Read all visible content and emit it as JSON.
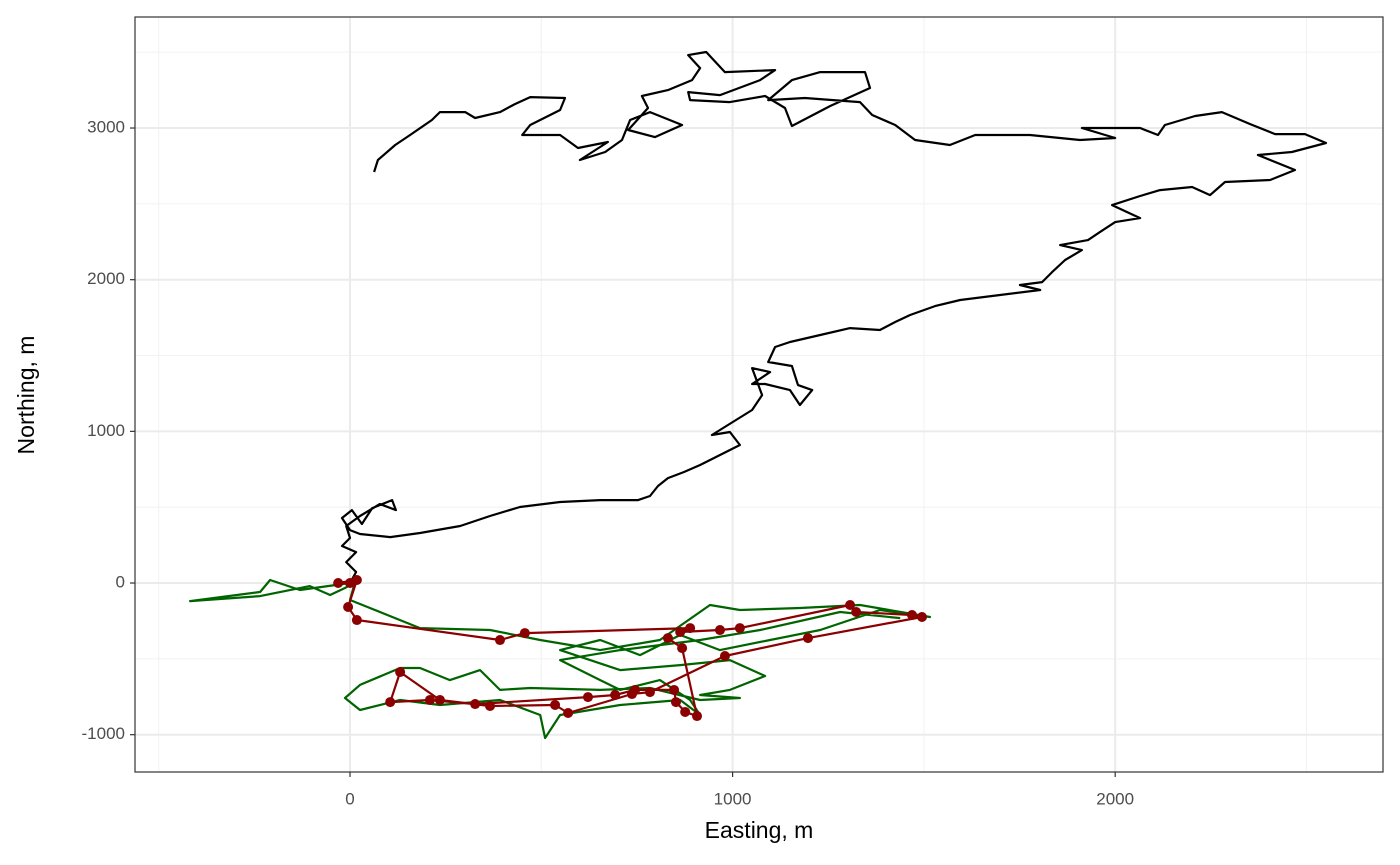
{
  "chart_data": {
    "type": "line",
    "x_label": "Easting, m",
    "y_label": "Northing, m",
    "xlim": [
      -562,
      2700
    ],
    "ylim": [
      -1246,
      3732
    ],
    "xticks": [
      0,
      1000,
      2000
    ],
    "yticks": [
      -1000,
      0,
      1000,
      2000,
      3000
    ],
    "x_minor_grid": [
      -500,
      500,
      1500,
      2500
    ],
    "y_minor_grid": [
      -500,
      500,
      1500,
      2500,
      3500
    ],
    "grid": true,
    "series": [
      {
        "color": "#000000",
        "markers": false,
        "x": [
          63,
          73,
          118,
          157,
          214,
          235,
          301,
          327,
          392,
          431,
          471,
          562,
          549,
          471,
          450,
          549,
          596,
          674,
          601,
          667,
          711,
          732,
          784,
          868,
          797,
          727,
          779,
          763,
          831,
          894,
          915,
          884,
          931,
          980,
          1111,
          1072,
          967,
          884,
          889,
          993,
          1085,
          1137,
          1155,
          1255,
          1359,
          1346,
          1229,
          1155,
          1093,
          1189,
          1333,
          1365,
          1425,
          1477,
          1568,
          1634,
          1777,
          1908,
          2000,
          1913,
          2065,
          2112,
          2130,
          2209,
          2279,
          2353,
          2418,
          2496,
          2551,
          2462,
          2373,
          2470,
          2405,
          2287,
          2248,
          2201,
          2117,
          2065,
          1992,
          2065,
          2000,
          1960,
          1929,
          1856,
          1913,
          1869,
          1835,
          1809,
          1751,
          1804,
          1699,
          1595,
          1529,
          1464,
          1425,
          1385,
          1307,
          1229,
          1150,
          1111,
          1093,
          1155,
          1171,
          1208,
          1176,
          1150,
          1085,
          1051,
          1098,
          1051,
          1077,
          1051,
          1009,
          946,
          993,
          1019,
          967,
          915,
          873,
          831,
          805,
          784,
          753,
          654,
          549,
          444,
          366,
          288,
          183,
          105,
          26,
          0,
          -21,
          5,
          31,
          58,
          110,
          120,
          78,
          26,
          -10,
          0,
          -21,
          16,
          -10,
          16,
          0
        ],
        "y": [
          2710,
          2789,
          2888,
          2954,
          3053,
          3105,
          3105,
          3066,
          3105,
          3158,
          3204,
          3198,
          3119,
          3020,
          2954,
          2954,
          2868,
          2908,
          2789,
          2842,
          2921,
          3053,
          3105,
          3020,
          2940,
          2987,
          3132,
          3211,
          3250,
          3316,
          3395,
          3481,
          3501,
          3369,
          3382,
          3316,
          3217,
          3237,
          3184,
          3171,
          3211,
          3132,
          3013,
          3145,
          3264,
          3369,
          3369,
          3316,
          3184,
          3198,
          3171,
          3086,
          3020,
          2921,
          2888,
          2954,
          2954,
          2921,
          2934,
          3000,
          3000,
          2954,
          3020,
          3079,
          3105,
          3026,
          2960,
          2960,
          2901,
          2842,
          2822,
          2723,
          2657,
          2644,
          2558,
          2611,
          2591,
          2552,
          2492,
          2406,
          2380,
          2314,
          2261,
          2228,
          2195,
          2130,
          2050,
          1984,
          1965,
          1932,
          1899,
          1866,
          1826,
          1767,
          1721,
          1668,
          1681,
          1635,
          1589,
          1556,
          1457,
          1431,
          1305,
          1272,
          1174,
          1272,
          1312,
          1312,
          1391,
          1417,
          1239,
          1141,
          1075,
          976,
          996,
          910,
          844,
          778,
          732,
          692,
          640,
          574,
          547,
          547,
          534,
          501,
          442,
          376,
          330,
          303,
          323,
          349,
          429,
          481,
          389,
          494,
          547,
          481,
          521,
          442,
          376,
          297,
          244,
          204,
          138,
          73,
          0
        ]
      },
      {
        "color": "#006400",
        "markers": false,
        "x": [
          0,
          -131,
          -209,
          -235,
          -418,
          -235,
          -105,
          -52,
          -13,
          13,
          0,
          183,
          366,
          497,
          654,
          810,
          941,
          1019,
          1176,
          1333,
          1516,
          1385,
          1229,
          1098,
          967,
          863,
          758,
          654,
          549,
          706,
          863,
          993,
          1085,
          993,
          915,
          1019,
          915,
          784,
          654,
          471,
          392,
          340,
          261,
          183,
          131,
          26,
          -13,
          26,
          131,
          235,
          392,
          497,
          510,
          549,
          706,
          863,
          915,
          889,
          810,
          706,
          654,
          549,
          706,
          915,
          1072,
          1281,
          1438
        ],
        "y": [
          0,
          -46,
          20,
          -59,
          -119,
          -86,
          -20,
          -79,
          -33,
          7,
          -112,
          -297,
          -310,
          -376,
          -442,
          -376,
          -145,
          -178,
          -165,
          -145,
          -224,
          -178,
          -310,
          -376,
          -442,
          -343,
          -475,
          -376,
          -442,
          -574,
          -541,
          -508,
          -613,
          -705,
          -738,
          -758,
          -771,
          -692,
          -705,
          -692,
          -705,
          -574,
          -640,
          -560,
          -560,
          -672,
          -758,
          -837,
          -771,
          -804,
          -771,
          -870,
          -1022,
          -870,
          -804,
          -771,
          -870,
          -771,
          -640,
          -705,
          -640,
          -508,
          -442,
          -376,
          -310,
          -191,
          -231
        ]
      },
      {
        "color": "#8b0000",
        "markers": true,
        "x": [
          0,
          -31,
          18,
          -5,
          18,
          392,
          457,
          889,
          863,
          967,
          1019,
          1307,
          1323,
          1469,
          1495,
          1197,
          980,
          784,
          737,
          570,
          536,
          366,
          235,
          131,
          105,
          209,
          327,
          622,
          693,
          745,
          847,
          852,
          876,
          907,
          868,
          831
        ],
        "y": [
          0,
          0,
          20,
          -158,
          -244,
          -376,
          -330,
          -297,
          -323,
          -310,
          -297,
          -145,
          -191,
          -211,
          -224,
          -363,
          -481,
          -719,
          -732,
          -857,
          -804,
          -811,
          -771,
          -587,
          -785,
          -771,
          -798,
          -752,
          -738,
          -705,
          -705,
          -785,
          -850,
          -877,
          -429,
          -363
        ]
      }
    ]
  }
}
